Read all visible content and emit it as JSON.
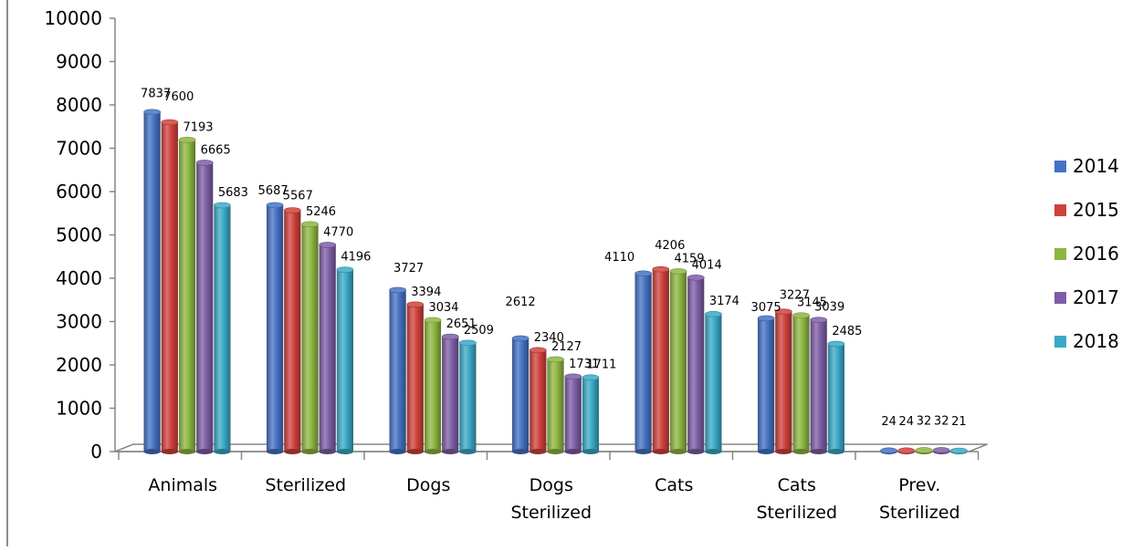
{
  "chart_data": {
    "type": "bar",
    "title": "",
    "xlabel": "",
    "ylabel": "",
    "ylim": [
      0,
      10000
    ],
    "yticks": [
      0,
      1000,
      2000,
      3000,
      4000,
      5000,
      6000,
      7000,
      8000,
      9000,
      10000
    ],
    "categories": [
      [
        "Animals"
      ],
      [
        "Sterilized"
      ],
      [
        "Dogs"
      ],
      [
        "Dogs",
        "Sterilized"
      ],
      [
        "Cats"
      ],
      [
        "Cats",
        "Sterilized"
      ],
      [
        "Prev.",
        "Sterilized"
      ]
    ],
    "series": [
      {
        "name": "2014",
        "color": "#4572c4",
        "values": [
          7837,
          5687,
          3727,
          2612,
          4110,
          3075,
          24
        ]
      },
      {
        "name": "2015",
        "color": "#d0413c",
        "values": [
          7600,
          5567,
          3394,
          2340,
          4206,
          3227,
          24
        ]
      },
      {
        "name": "2016",
        "color": "#8db641",
        "values": [
          7193,
          5246,
          3034,
          2127,
          4159,
          3145,
          32
        ]
      },
      {
        "name": "2017",
        "color": "#7d5ea6",
        "values": [
          6665,
          4770,
          2651,
          1731,
          4014,
          3039,
          32
        ]
      },
      {
        "name": "2018",
        "color": "#3aa9c6",
        "values": [
          5683,
          4196,
          2509,
          1711,
          3174,
          2485,
          21
        ]
      }
    ],
    "legend_position": "right",
    "grid": false,
    "style": "3d-cylinder"
  }
}
